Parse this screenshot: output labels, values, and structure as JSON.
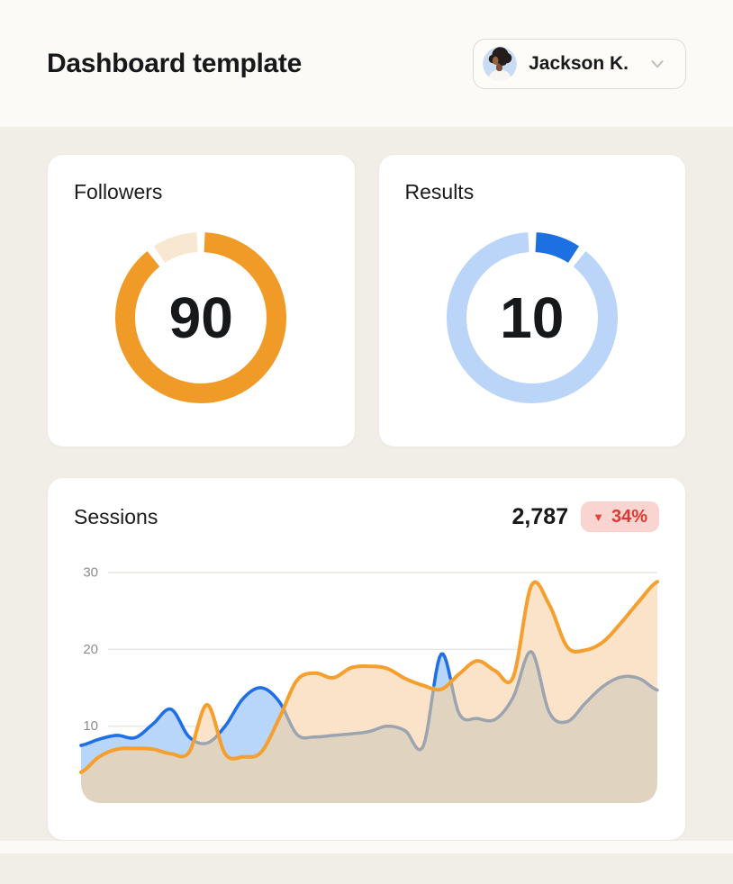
{
  "header": {
    "title": "Dashboard template",
    "user": {
      "name": "Jackson K."
    }
  },
  "cards": {
    "followers": {
      "title": "Followers",
      "value": "90"
    },
    "results": {
      "title": "Results",
      "value": "10"
    },
    "sessions": {
      "title": "Sessions",
      "value": "2,787",
      "change": "34%",
      "direction": "down"
    }
  },
  "colors": {
    "accent_orange": "#F09B27",
    "accent_blue": "#1D70E2",
    "negative_red": "#D93A31",
    "badge_bg": "#F9D4D0",
    "page_bg": "#F1EEE7",
    "band_bg": "#FBFAF6"
  },
  "chart_data": [
    {
      "type": "donut",
      "title": "Followers",
      "value": 90,
      "total": 100,
      "center_label": "90",
      "colors": {
        "main": "#F09B27",
        "rest": "#F8E8D1"
      }
    },
    {
      "type": "donut",
      "title": "Results",
      "value": 10,
      "total": 100,
      "center_label": "10",
      "colors": {
        "main": "#1D70E2",
        "rest": "#BAD5F7"
      }
    },
    {
      "type": "area",
      "title": "Sessions",
      "ylim": [
        0,
        31
      ],
      "yticks": [
        10,
        20,
        30
      ],
      "grid": true,
      "legend": false,
      "x_labels": [],
      "series": [
        {
          "name": "blue",
          "line_color": "#1F6FE8",
          "fill_color": "#B7D6F9",
          "occluded_line_color": "#9CA5AF",
          "values": [
            7.5,
            8.3,
            8.8,
            8.5,
            10.3,
            12.2,
            8.6,
            7.8,
            10.0,
            13.6,
            15.0,
            13.2,
            8.9,
            8.6,
            8.8,
            9.0,
            9.3,
            10.0,
            9.4,
            7.4,
            19.4,
            11.6,
            11.0,
            10.9,
            13.8,
            19.7,
            11.8,
            10.6,
            13.0,
            15.2,
            16.4,
            16.2,
            14.7
          ]
        },
        {
          "name": "orange",
          "line_color": "#F59F2E",
          "fill_color": "#FAE3C8",
          "values": [
            4.0,
            6.0,
            7.0,
            7.1,
            7.0,
            6.4,
            6.6,
            12.8,
            6.4,
            6.0,
            6.6,
            11.0,
            16.0,
            16.9,
            16.3,
            17.6,
            17.8,
            17.5,
            16.2,
            15.3,
            14.8,
            16.8,
            18.5,
            17.2,
            16.4,
            28.3,
            25.8,
            20.3,
            19.9,
            21.0,
            23.5,
            26.3,
            28.8
          ]
        }
      ],
      "overlap_fill": "#E0D4C1",
      "axis_label_color": "#8C8C8C",
      "grid_color": "#E8E7E4"
    }
  ]
}
